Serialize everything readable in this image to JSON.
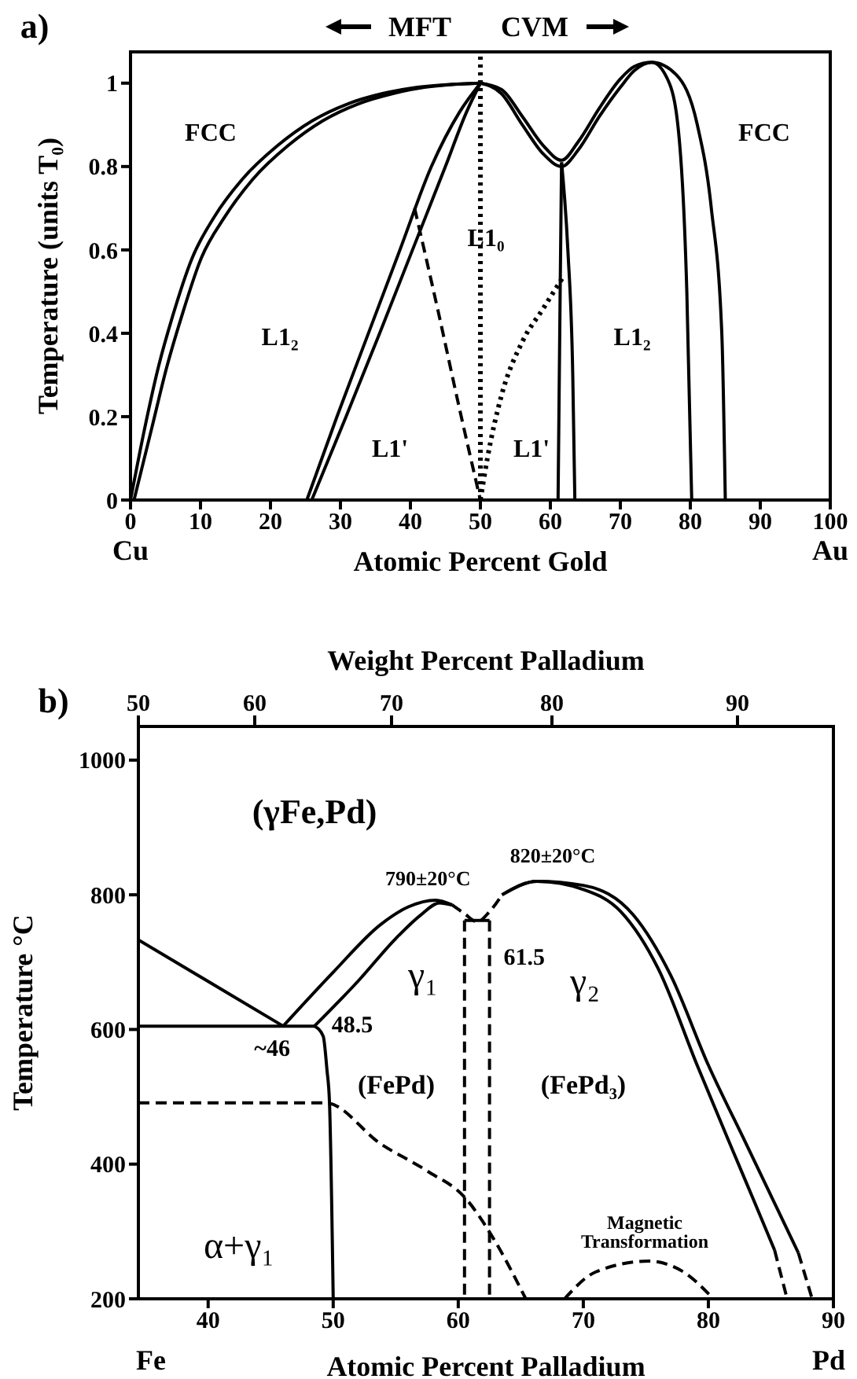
{
  "chart_data": [
    {
      "type": "line",
      "title": "a)",
      "xlabel": "Atomic Percent Gold",
      "ylabel": "Temperature (units T₀)",
      "xlim": [
        0,
        100
      ],
      "xticks": [
        0,
        10,
        20,
        30,
        40,
        50,
        60,
        70,
        80,
        90,
        100
      ],
      "ylim": [
        0,
        1.075
      ],
      "yticks": [
        0.0,
        0.2,
        0.4,
        0.6,
        0.8,
        1.0
      ],
      "grid": false,
      "marker": "none",
      "series": [
        {
          "color": "#000000",
          "line_style": "solid",
          "x": [
            0,
            2,
            4,
            6,
            8.8,
            12,
            16,
            21,
            26,
            31,
            36,
            41,
            50
          ],
          "values": [
            0,
            0.17,
            0.32,
            0.44,
            0.58,
            0.68,
            0.77,
            0.85,
            0.91,
            0.95,
            0.975,
            0.99,
            1.0
          ]
        },
        {
          "color": "#000000",
          "line_style": "solid",
          "x": [
            0.5,
            3,
            5.2,
            7.3,
            10.1,
            13.5,
            17.5,
            22.5,
            27.5,
            32.5,
            37.5,
            42,
            50
          ],
          "values": [
            0,
            0.17,
            0.32,
            0.44,
            0.58,
            0.68,
            0.77,
            0.85,
            0.91,
            0.95,
            0.975,
            0.99,
            1.0
          ]
        },
        {
          "color": "#000000",
          "line_style": "solid",
          "x": [
            25.2,
            29.5,
            34,
            38.5,
            43,
            47,
            50
          ],
          "values": [
            0,
            0.2,
            0.4,
            0.6,
            0.8,
            0.93,
            1.0
          ]
        },
        {
          "color": "#000000",
          "line_style": "solid",
          "x": [
            25.9,
            30.8,
            35.6,
            40.3,
            45,
            48,
            50
          ],
          "values": [
            0,
            0.2,
            0.4,
            0.6,
            0.8,
            0.93,
            1.0
          ]
        },
        {
          "color": "#000000",
          "line_style": "dashed",
          "x": [
            40.6,
            44,
            47,
            50
          ],
          "values": [
            0.7,
            0.45,
            0.22,
            0
          ]
        },
        {
          "color": "#000000",
          "line_style": "dotted",
          "x": [
            50,
            51,
            53,
            56,
            59,
            62
          ],
          "values": [
            0,
            0.1,
            0.25,
            0.38,
            0.46,
            0.54
          ]
        },
        {
          "color": "#000000",
          "line_style": "solid",
          "x": [
            50,
            53,
            56,
            59,
            61.6,
            64,
            67,
            70,
            72,
            74.5,
            78,
            81,
            83,
            84.5,
            85
          ],
          "values": [
            1.0,
            0.985,
            0.92,
            0.85,
            0.815,
            0.86,
            0.94,
            1.01,
            1.04,
            1.05,
            1.02,
            0.9,
            0.7,
            0.4,
            0
          ]
        },
        {
          "color": "#000000",
          "line_style": "solid",
          "x": [
            50,
            53,
            56,
            59,
            61.6,
            64,
            67,
            70,
            72,
            74.5,
            77,
            78.5,
            79.5,
            80.2
          ],
          "values": [
            1.0,
            0.975,
            0.9,
            0.83,
            0.8,
            0.84,
            0.92,
            0.99,
            1.03,
            1.05,
            1.0,
            0.85,
            0.5,
            0
          ]
        },
        {
          "color": "#000000",
          "line_style": "solid",
          "x": [
            61.6,
            61.4,
            61.1
          ],
          "values": [
            0.81,
            0.5,
            0
          ]
        },
        {
          "color": "#000000",
          "line_style": "solid",
          "x": [
            61.6,
            62.5,
            63.2,
            63.5
          ],
          "values": [
            0.81,
            0.6,
            0.3,
            0
          ]
        }
      ],
      "ref_lines": [
        {
          "axis": "x",
          "value": 50,
          "line_style": "dotted",
          "color": "#000000"
        }
      ],
      "annotations": [
        "MFT",
        "CVM",
        "Cu",
        "Au",
        "FCC",
        "L1₂",
        "L1'",
        "L1₀",
        "L1'",
        "L1₂",
        "FCC"
      ]
    },
    {
      "type": "line",
      "title": "b)",
      "xlabel": "Atomic Percent Palladium",
      "x2label": "Weight Percent Palladium",
      "ylabel": "Temperature °C",
      "xlim": [
        34.42,
        90
      ],
      "xticks": [
        40,
        50,
        60,
        70,
        80,
        90
      ],
      "ylim": [
        200,
        1050
      ],
      "yticks": [
        200,
        400,
        600,
        800,
        1000
      ],
      "grid": false,
      "marker": "none",
      "series": [
        {
          "color": "#000000",
          "line_style": "solid",
          "x": [
            34.42,
            46
          ],
          "values": [
            733,
            605
          ]
        },
        {
          "color": "#000000",
          "line_style": "solid",
          "x": [
            34.42,
            48.5
          ],
          "values": [
            605,
            605
          ]
        },
        {
          "color": "#000000",
          "line_style": "solid",
          "x": [
            48.5,
            49.2,
            49.5,
            49.7,
            50
          ],
          "values": [
            605,
            590,
            540,
            493,
            200
          ]
        },
        {
          "color": "#000000",
          "line_style": "solid",
          "x": [
            46,
            50,
            53.8,
            56,
            58.2,
            59.5
          ],
          "values": [
            605,
            685,
            756,
            782,
            792,
            785
          ]
        },
        {
          "color": "#000000",
          "line_style": "solid",
          "x": [
            48.5,
            52,
            55,
            57,
            58.5,
            59.5
          ],
          "values": [
            605,
            672,
            735,
            770,
            788,
            785
          ]
        },
        {
          "color": "#000000",
          "line_style": "dashed",
          "x": [
            59.5,
            60.5,
            61.5,
            62.5,
            63.5
          ],
          "values": [
            785,
            772,
            760,
            775,
            800
          ]
        },
        {
          "color": "#000000",
          "line_style": "solid",
          "x": [
            63.5,
            66.3,
            70,
            74,
            77,
            80,
            83,
            85.5,
            87.2
          ],
          "values": [
            800,
            820,
            814,
            770,
            680,
            547,
            431,
            334,
            268
          ]
        },
        {
          "color": "#000000",
          "line_style": "solid",
          "x": [
            63.5,
            66.3,
            70,
            73,
            76,
            79.1,
            82,
            84,
            85.3
          ],
          "values": [
            800,
            820,
            808,
            775,
            690,
            547,
            418,
            330,
            272
          ]
        },
        {
          "color": "#000000",
          "line_style": "dashed",
          "x": [
            87.2,
            88.3
          ],
          "values": [
            268,
            200
          ]
        },
        {
          "color": "#000000",
          "line_style": "dashed",
          "x": [
            85.3,
            86.3
          ],
          "values": [
            272,
            200
          ]
        },
        {
          "color": "#000000",
          "line_style": "dashed",
          "x": [
            60.5,
            60.5
          ],
          "values": [
            762,
            200
          ]
        },
        {
          "color": "#000000",
          "line_style": "dashed",
          "x": [
            62.5,
            62.5
          ],
          "values": [
            762,
            200
          ]
        },
        {
          "color": "#000000",
          "line_style": "solid",
          "x": [
            60.5,
            62.5
          ],
          "values": [
            762,
            762
          ]
        },
        {
          "color": "#000000",
          "line_style": "dashed",
          "x": [
            34.42,
            49.4,
            53.8,
            57.5,
            60.6,
            62.7,
            65.4
          ],
          "values": [
            491,
            491,
            430,
            390,
            349,
            293,
            200
          ]
        },
        {
          "color": "#000000",
          "line_style": "dashed",
          "x": [
            68.5,
            71,
            75.2,
            78,
            80.4
          ],
          "values": [
            200,
            240,
            256,
            240,
            200
          ]
        }
      ],
      "annotations": [
        "Fe",
        "Pd",
        "(γFe,Pd)",
        {
          "text": "790±20°C",
          "x": 58.2,
          "y": 792
        },
        {
          "text": "820±20°C",
          "x": 66.3,
          "y": 821
        },
        {
          "text": "61.5",
          "x": 61.5,
          "y": 762
        },
        {
          "text": "~46",
          "x": 46,
          "y": 605
        },
        {
          "text": "48.5",
          "x": 48.5,
          "y": 605
        },
        "γ₁",
        "γ₂",
        "(FePd)",
        "(FePd₃)",
        "α+γ₁",
        "Magnetic Transformation",
        "50",
        "60",
        "70",
        "80",
        "90"
      ]
    }
  ]
}
